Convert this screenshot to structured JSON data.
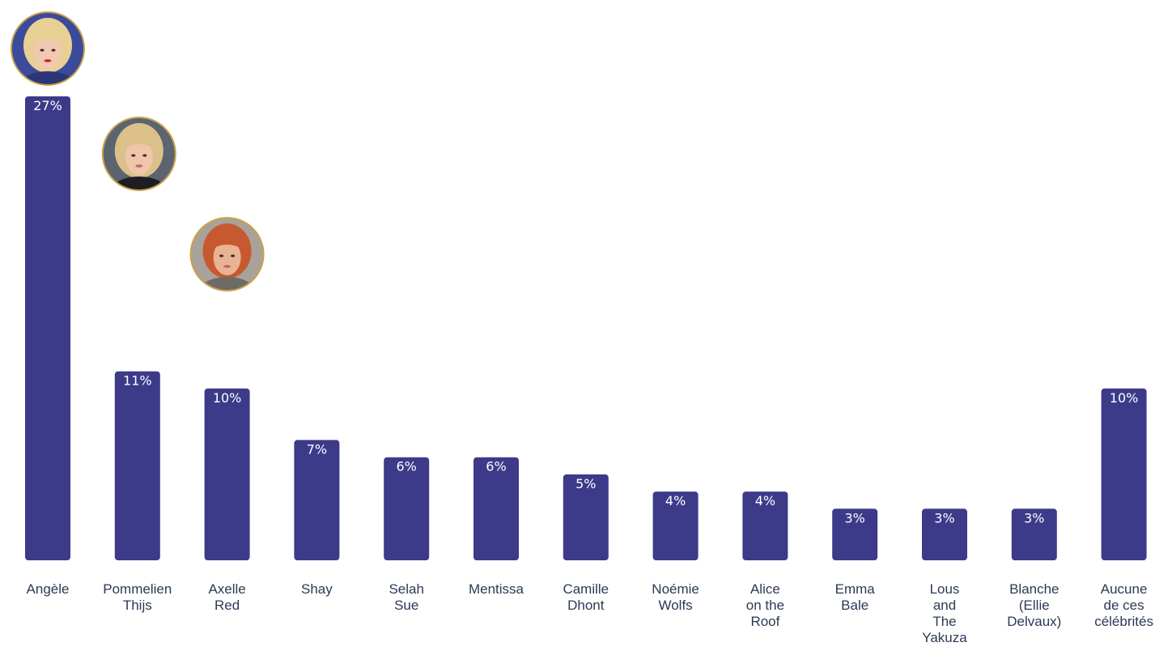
{
  "chart_data": {
    "type": "bar",
    "categories": [
      "Angèle",
      "Pommelien Thijs",
      "Axelle Red",
      "Shay",
      "Selah Sue",
      "Mentissa",
      "Camille Dhont",
      "Noémie Wolfs",
      "Alice on the Roof",
      "Emma Bale",
      "Lous and The Yakuza",
      "Blanche (Ellie Delvaux)",
      "Aucune de ces célébrités"
    ],
    "values": [
      27,
      11,
      10,
      7,
      6,
      6,
      5,
      4,
      4,
      3,
      3,
      3,
      10
    ],
    "value_labels": [
      "27%",
      "11%",
      "10%",
      "7%",
      "6%",
      "6%",
      "5%",
      "4%",
      "4%",
      "3%",
      "3%",
      "3%",
      "10%"
    ],
    "title": "",
    "xlabel": "",
    "ylabel": "",
    "ylim": [
      0,
      27
    ],
    "grid": false,
    "legend": "none",
    "bar_color": "#3d3a8a",
    "avatars": [
      {
        "category": "Angèle",
        "icon": "portrait-photo-icon"
      },
      {
        "category": "Pommelien Thijs",
        "icon": "portrait-photo-icon"
      },
      {
        "category": "Axelle Red",
        "icon": "portrait-photo-icon"
      }
    ]
  },
  "colors": {
    "bar": "#3d3a8a",
    "label_text": "#2b3a55",
    "value_text": "#ffffff",
    "avatar_ring": "#c9a24a"
  }
}
